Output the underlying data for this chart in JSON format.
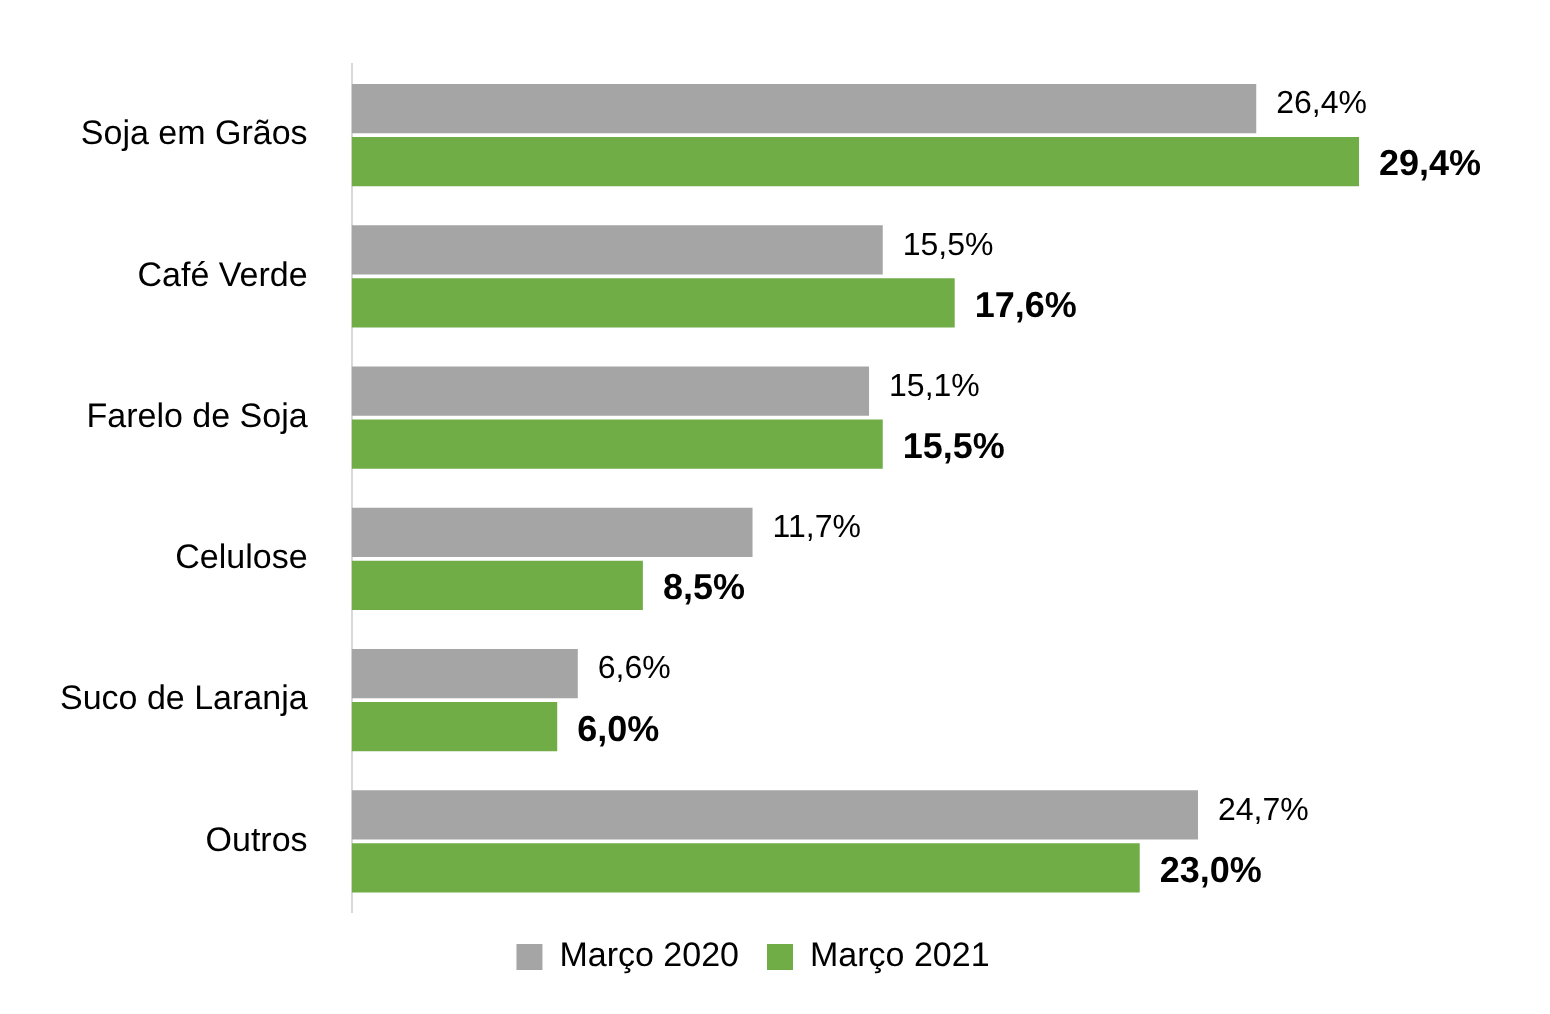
{
  "chart_data": {
    "type": "bar",
    "orientation": "horizontal",
    "categories": [
      "Soja em Grãos",
      "Café Verde",
      "Farelo de Soja",
      "Celulose",
      "Suco de Laranja",
      "Outros"
    ],
    "series": [
      {
        "name": "Março 2020",
        "color": "#a5a5a5",
        "values": [
          26.4,
          15.5,
          15.1,
          11.7,
          6.6,
          24.7
        ],
        "value_labels": [
          "26,4%",
          "15,5%",
          "15,1%",
          "11,7%",
          "6,6%",
          "24,7%"
        ]
      },
      {
        "name": "Março 2021",
        "color": "#70ad47",
        "values": [
          29.4,
          17.6,
          15.5,
          8.5,
          6.0,
          23.0
        ],
        "value_labels": [
          "29,4%",
          "17,6%",
          "15,5%",
          "8,5%",
          "6,0%",
          "23,0%"
        ]
      }
    ],
    "legend": "bottom"
  }
}
